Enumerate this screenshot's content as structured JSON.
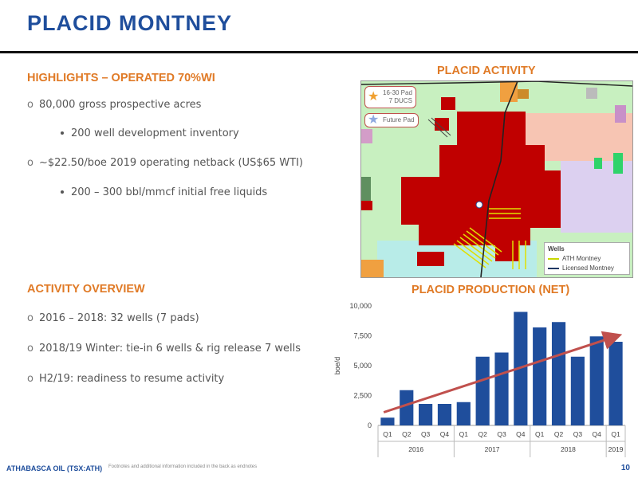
{
  "title": "PLACID MONTNEY",
  "highlights": {
    "heading": "HIGHLIGHTS – OPERATED 70%WI",
    "items": [
      "80,000 gross prospective acres",
      "200 well development inventory",
      "~$22.50/boe 2019 operating netback (US$65 WTI)",
      "200 – 300 bbl/mmcf initial free liquids"
    ]
  },
  "activity_overview": {
    "heading": "ACTIVITY OVERVIEW",
    "items": [
      "2016 – 2018: 32 wells (7 pads)",
      "2018/19 Winter: tie-in 6 wells & rig release 7 wells",
      "H2/19: readiness to resume activity"
    ]
  },
  "map": {
    "heading": "PLACID ACTIVITY",
    "callout_pad_line1": "16-30 Pad",
    "callout_pad_line2": "7 DUCS",
    "callout_future": "Future Pad",
    "legend_title": "Wells",
    "legend_ath": "ATH Montney",
    "legend_licensed": "Licensed Montney",
    "colors": {
      "acreage": "#c00000",
      "ath_wells": "#e0e000",
      "licensed_wells": "#1f3864"
    }
  },
  "chart_data": {
    "type": "bar",
    "title": "PLACID PRODUCTION (NET)",
    "ylabel": "boe/d",
    "ylim": [
      0,
      10000
    ],
    "yticks": [
      0,
      2500,
      5000,
      7500,
      10000
    ],
    "ytick_labels": [
      "0",
      "2,500",
      "5,000",
      "7,500",
      "10,000"
    ],
    "categories": [
      "Q1",
      "Q2",
      "Q3",
      "Q4",
      "Q1",
      "Q2",
      "Q3",
      "Q4",
      "Q1",
      "Q2",
      "Q3",
      "Q4",
      "Q1"
    ],
    "groups": [
      {
        "label": "2016",
        "count": 4
      },
      {
        "label": "2017",
        "count": 4
      },
      {
        "label": "2018",
        "count": 4
      },
      {
        "label": "2019",
        "count": 1
      }
    ],
    "values": [
      650,
      2950,
      1800,
      1800,
      1950,
      5750,
      6100,
      9500,
      8200,
      8650,
      5750,
      7450,
      7000
    ],
    "trend": {
      "start": 1100,
      "end": 7500
    },
    "colors": {
      "bar": "#1f4e9c",
      "trend": "#c0504d"
    }
  },
  "footer": {
    "brand": "ATHABASCA OIL (TSX:ATH)",
    "note": "Footnotes and additional information included in the back as endnotes",
    "page": "10"
  }
}
